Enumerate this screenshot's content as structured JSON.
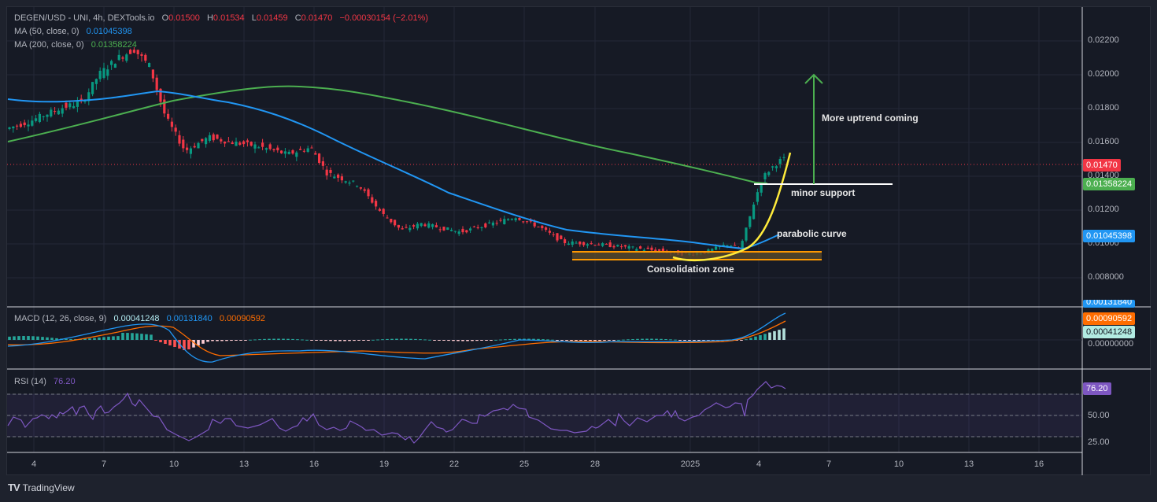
{
  "header": {
    "symbol": "DEGEN/USD - UNI, 4h, DEXTools.io",
    "o_label": "O",
    "o_value": "0.01500",
    "h_label": "H",
    "h_value": "0.01534",
    "l_label": "L",
    "l_value": "0.01459",
    "c_label": "C",
    "c_value": "0.01470",
    "change": "−0.00030154 (−2.01%)"
  },
  "indicators": {
    "ma50_label": "MA (50, close, 0)",
    "ma50_value": "0.01045398",
    "ma200_label": "MA (200, close, 0)",
    "ma200_value": "0.01358224",
    "macd_label": "MACD (12, 26, close, 9)",
    "macd_hist": "0.00041248",
    "macd_line": "0.00131840",
    "macd_signal": "0.00090592",
    "rsi_label": "RSI (14)",
    "rsi_value": "76.20"
  },
  "price_axis": {
    "ticks": [
      "0.02200",
      "0.02000",
      "0.01800",
      "0.01600",
      "0.01400",
      "0.01200",
      "0.01000",
      "0.008000"
    ],
    "tags": {
      "last": "0.01470",
      "ma200": "0.01358224",
      "ma50": "0.01045398"
    }
  },
  "macd_axis": {
    "tags": {
      "macd": "0.00131840",
      "signal": "0.00090592",
      "hist": "0.00041248"
    },
    "zero": "0.00000000"
  },
  "rsi_axis": {
    "ticks": [
      "50.00",
      "25.00"
    ],
    "tag": "76.20"
  },
  "time_axis": {
    "ticks": [
      "4",
      "7",
      "10",
      "13",
      "16",
      "19",
      "22",
      "25",
      "28",
      "2025",
      "4",
      "7",
      "10",
      "13",
      "16"
    ]
  },
  "annotations": {
    "uptrend": "More uptrend coming",
    "support": "minor support",
    "parabolic": "parabolic curve",
    "consolidation": "Consolidation zone"
  },
  "colors": {
    "up": "#089981",
    "down": "#f23645",
    "ma50": "#2196f3",
    "ma200": "#4caf50",
    "macd": "#2196f3",
    "signal": "#ff6d00",
    "rsi": "#7e57c2",
    "annot_curve": "#ffeb3b",
    "zone": "#ff9800"
  },
  "footer": {
    "brand": "TradingView"
  },
  "chart_data": {
    "type": "candlestick",
    "title": "DEGEN/USD - UNI, 4h, DEXTools.io",
    "ylim": [
      0.007,
      0.0232
    ],
    "x_ticks": [
      "4",
      "7",
      "10",
      "13",
      "16",
      "19",
      "22",
      "25",
      "28",
      "2025",
      "4",
      "7",
      "10",
      "13",
      "16"
    ],
    "ohlc_last": {
      "open": 0.015,
      "high": 0.01534,
      "low": 0.01459,
      "close": 0.0147,
      "change": -0.00030154,
      "change_pct": -2.01
    },
    "approx_close_path": [
      {
        "x": "4",
        "close": 0.017
      },
      {
        "x": "7",
        "close": 0.02
      },
      {
        "x": "8",
        "close": 0.0215
      },
      {
        "x": "10",
        "close": 0.016
      },
      {
        "x": "13",
        "close": 0.0165
      },
      {
        "x": "16",
        "close": 0.015
      },
      {
        "x": "19",
        "close": 0.0128
      },
      {
        "x": "21",
        "close": 0.0105
      },
      {
        "x": "22",
        "close": 0.0108
      },
      {
        "x": "25",
        "close": 0.0115
      },
      {
        "x": "28",
        "close": 0.0102
      },
      {
        "x": "2025",
        "close": 0.0092
      },
      {
        "x": "3",
        "close": 0.01
      },
      {
        "x": "4",
        "close": 0.0135
      },
      {
        "x": "5",
        "close": 0.0147
      }
    ],
    "series": [
      {
        "name": "MA 50",
        "last": 0.01045398
      },
      {
        "name": "MA 200",
        "last": 0.01358224
      },
      {
        "name": "MACD",
        "last": 0.0013184
      },
      {
        "name": "Signal",
        "last": 0.00090592
      },
      {
        "name": "Histogram",
        "last": 0.00041248
      },
      {
        "name": "RSI 14",
        "last": 76.2,
        "levels": [
          70,
          50,
          30
        ]
      }
    ],
    "annotations": [
      "More uptrend coming",
      "minor support",
      "parabolic curve",
      "Consolidation zone"
    ]
  }
}
